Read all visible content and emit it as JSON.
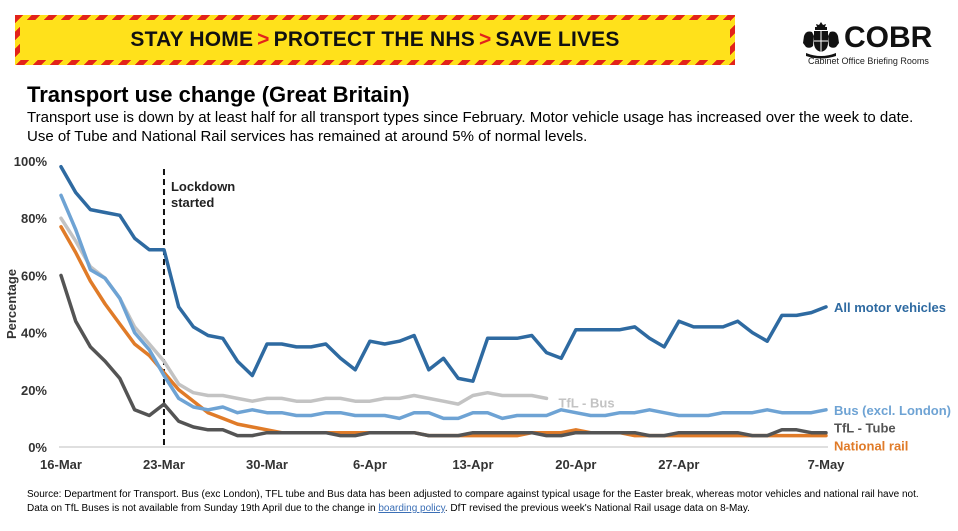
{
  "banner": {
    "part1": "STAY HOME",
    "part2": "PROTECT THE NHS",
    "part3": "SAVE LIVES",
    "separator": ">"
  },
  "brand": {
    "name": "COBR",
    "subtitle": "Cabinet Office Briefing Rooms",
    "crest_icon": "royal-crest-icon"
  },
  "header": {
    "title": "Transport use change (Great Britain)",
    "subtitle": "Transport use is down by at least half for all transport types since February. Motor vehicle usage has increased over the week to date. Use of Tube and National Rail services has remained at around 5% of normal levels."
  },
  "footnote": {
    "text_before_link": "Source: Department for Transport. Bus (exc London), TFL tube and Bus data has been adjusted to compare against typical usage for the Easter break, whereas motor vehicles and national rail have not. Data on TfL Buses is not available from Sunday 19th April due to the change in ",
    "link_text": "boarding policy",
    "text_after_link": ". DfT revised the previous week's National Rail usage data on 8-May."
  },
  "chart_data": {
    "type": "line",
    "title": "",
    "xlabel": "",
    "ylabel": "Percentage",
    "ylim": [
      0,
      100
    ],
    "yticks": [
      0,
      20,
      40,
      60,
      80,
      100
    ],
    "ytick_labels": [
      "0%",
      "20%",
      "40%",
      "60%",
      "80%",
      "100%"
    ],
    "x_start": "16-Mar",
    "x_end": "7-May",
    "xticks": [
      {
        "day": 0,
        "label": "16-Mar"
      },
      {
        "day": 7,
        "label": "23-Mar"
      },
      {
        "day": 14,
        "label": "30-Mar"
      },
      {
        "day": 21,
        "label": "6-Apr"
      },
      {
        "day": 28,
        "label": "13-Apr"
      },
      {
        "day": 35,
        "label": "20-Apr"
      },
      {
        "day": 42,
        "label": "27-Apr"
      },
      {
        "day": 52,
        "label": "7-May"
      }
    ],
    "grid": false,
    "legend": "labels at end of lines",
    "annotation": {
      "day": 7,
      "text_line1": "Lockdown",
      "text_line2": "started"
    },
    "series": [
      {
        "name": "All motor vehicles",
        "color": "#2e6aa1",
        "x_start_day": 0,
        "values": [
          98,
          89,
          83,
          82,
          81,
          73,
          69,
          69,
          49,
          42,
          39,
          38,
          30,
          25,
          36,
          36,
          35,
          35,
          36,
          31,
          27,
          37,
          36,
          37,
          39,
          27,
          31,
          24,
          23,
          38,
          38,
          38,
          39,
          33,
          31,
          41,
          41,
          41,
          41,
          42,
          38,
          35,
          44,
          42,
          42,
          42,
          44,
          40,
          37,
          46,
          46,
          47,
          49
        ]
      },
      {
        "name": "Bus (excl. London)",
        "color": "#6ea3d4",
        "x_start_day": 0,
        "values": [
          88,
          76,
          62,
          59,
          52,
          40,
          34,
          25,
          17,
          14,
          13,
          14,
          12,
          13,
          12,
          12,
          11,
          11,
          12,
          12,
          11,
          11,
          11,
          10,
          12,
          12,
          10,
          10,
          12,
          12,
          10,
          11,
          11,
          11,
          13,
          12,
          11,
          11,
          12,
          12,
          13,
          12,
          11,
          11,
          11,
          12,
          12,
          12,
          13,
          12,
          12,
          12,
          13
        ]
      },
      {
        "name": "TfL - Bus",
        "color": "#c3c3c3",
        "x_start_day": 0,
        "values": [
          80,
          72,
          63,
          59,
          52,
          42,
          36,
          30,
          22,
          19,
          18,
          18,
          17,
          16,
          17,
          17,
          16,
          16,
          17,
          17,
          16,
          16,
          17,
          17,
          18,
          17,
          16,
          15,
          18,
          19,
          18,
          18,
          18,
          17
        ]
      },
      {
        "name": "TfL - Tube",
        "color": "#545454",
        "x_start_day": 0,
        "values": [
          60,
          44,
          35,
          30,
          24,
          13,
          11,
          15,
          9,
          7,
          6,
          6,
          4,
          4,
          5,
          5,
          5,
          5,
          5,
          4,
          4,
          5,
          5,
          5,
          5,
          4,
          4,
          4,
          5,
          5,
          5,
          5,
          5,
          4,
          4,
          5,
          5,
          5,
          5,
          5,
          4,
          4,
          5,
          5,
          5,
          5,
          5,
          4,
          4,
          6,
          6,
          5,
          5
        ]
      },
      {
        "name": "National rail",
        "color": "#e07b28",
        "x_start_day": 0,
        "values": [
          77,
          68,
          58,
          50,
          43,
          36,
          32,
          26,
          20,
          16,
          12,
          10,
          8,
          7,
          6,
          5,
          5,
          5,
          5,
          5,
          5,
          5,
          5,
          5,
          5,
          4,
          4,
          4,
          4,
          4,
          4,
          4,
          5,
          5,
          5,
          6,
          5,
          5,
          5,
          4,
          4,
          4,
          4,
          4,
          4,
          4,
          4,
          4,
          4,
          4,
          4,
          4,
          4
        ]
      }
    ]
  }
}
